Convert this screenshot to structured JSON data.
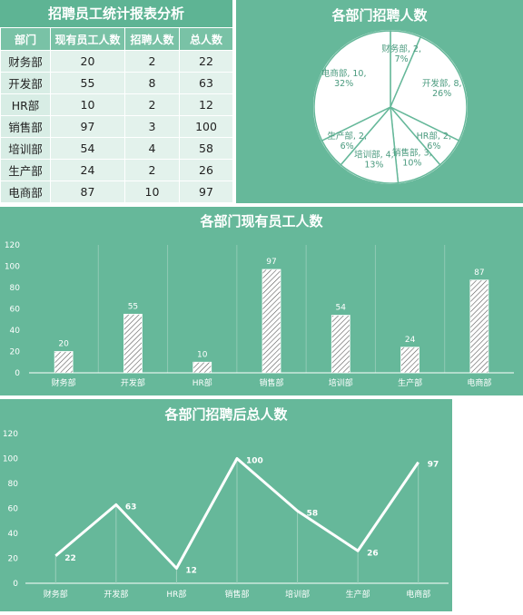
{
  "colors": {
    "panel": "#66b89a",
    "accent_text": "#4a9a7e",
    "white": "#ffffff"
  },
  "table": {
    "title": "招聘员工统计报表分析",
    "headers": [
      "部门",
      "现有员工人数",
      "招聘人数",
      "总人数"
    ],
    "rows": [
      [
        "财务部",
        "20",
        "2",
        "22"
      ],
      [
        "开发部",
        "55",
        "8",
        "63"
      ],
      [
        "HR部",
        "10",
        "2",
        "12"
      ],
      [
        "销售部",
        "97",
        "3",
        "100"
      ],
      [
        "培训部",
        "54",
        "4",
        "58"
      ],
      [
        "生产部",
        "24",
        "2",
        "26"
      ],
      [
        "电商部",
        "87",
        "10",
        "97"
      ]
    ]
  },
  "chart_data": [
    {
      "type": "pie",
      "title": "各部门招聘人数",
      "categories": [
        "财务部",
        "开发部",
        "HR部",
        "销售部",
        "培训部",
        "生产部",
        "电商部"
      ],
      "values": [
        2,
        8,
        2,
        3,
        4,
        2,
        10
      ],
      "labels": [
        "财务部, 2, 7%",
        "开发部, 8, 26%",
        "HR部, 2, 6%",
        "销售部, 3, 10%",
        "培训部, 4, 13%",
        "生产部, 2, 6%",
        "电商部, 10, 32%"
      ]
    },
    {
      "type": "bar",
      "title": "各部门现有员工人数",
      "categories": [
        "财务部",
        "开发部",
        "HR部",
        "销售部",
        "培训部",
        "生产部",
        "电商部"
      ],
      "values": [
        20,
        55,
        10,
        97,
        54,
        24,
        87
      ],
      "ylim": [
        0,
        120
      ],
      "yticks": [
        0,
        20,
        40,
        60,
        80,
        100,
        120
      ],
      "grid": true
    },
    {
      "type": "line",
      "title": "各部门招聘后总人数",
      "categories": [
        "财务部",
        "开发部",
        "HR部",
        "销售部",
        "培训部",
        "生产部",
        "电商部"
      ],
      "values": [
        22,
        63,
        12,
        100,
        58,
        26,
        97
      ],
      "ylim": [
        0,
        120
      ],
      "yticks": [
        0,
        20,
        40,
        60,
        80,
        100,
        120
      ],
      "grid": false
    }
  ]
}
